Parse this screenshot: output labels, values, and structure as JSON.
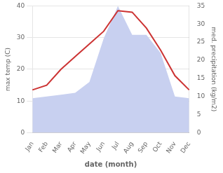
{
  "chart_data": {
    "type": "line",
    "categories": [
      "Jan",
      "Feb",
      "Mar",
      "Apr",
      "May",
      "Jun",
      "Jul",
      "Aug",
      "Sep",
      "Oct",
      "Nov",
      "Dec"
    ],
    "series": [
      {
        "type": "area",
        "color": "#c8d0f0",
        "axis": "y2",
        "values": [
          9.5,
          10.0,
          10.5,
          11.0,
          14.0,
          26.0,
          35.0,
          27.0,
          27.0,
          22.0,
          10.0,
          9.5
        ]
      },
      {
        "type": "line",
        "color": "#cc3333",
        "values": [
          13.5,
          15.0,
          20.0,
          24.0,
          28.0,
          32.0,
          38.5,
          38.0,
          33.0,
          26.0,
          18.0,
          13.5
        ]
      }
    ],
    "xlabel": "date (month)",
    "ylabel": "max temp (C)",
    "y2label": "med. precipitation (kg/m2)",
    "ylim": [
      0,
      40
    ],
    "yticks": [
      0,
      10,
      20,
      30,
      40
    ],
    "y2lim": [
      0,
      35
    ],
    "y2ticks": [
      0,
      5,
      10,
      15,
      20,
      25,
      30,
      35
    ],
    "grid": true
  }
}
